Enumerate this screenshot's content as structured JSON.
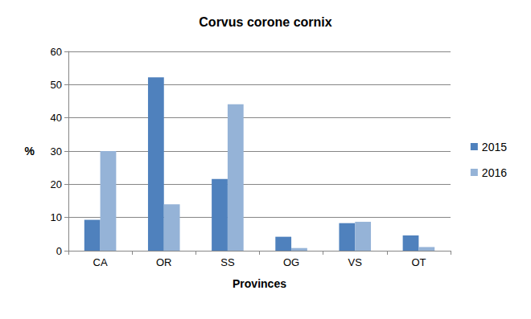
{
  "chart_data": {
    "type": "bar",
    "title": "Corvus corone cornix",
    "x_label": "Provinces",
    "y_label": "%",
    "categories": [
      "CA",
      "OR",
      "SS",
      "OG",
      "VS",
      "OT"
    ],
    "series": [
      {
        "name": "2015",
        "color": "#4f81bd",
        "values": [
          9.3,
          52.2,
          21.6,
          4.2,
          8.3,
          4.6
        ]
      },
      {
        "name": "2016",
        "color": "#95b3d7",
        "values": [
          30,
          14,
          44.1,
          0.8,
          8.7,
          1.1
        ]
      }
    ],
    "ylim": [
      0,
      60
    ],
    "yticks": [
      0,
      10,
      20,
      30,
      40,
      50,
      60
    ],
    "grid": true,
    "legend": "right"
  }
}
